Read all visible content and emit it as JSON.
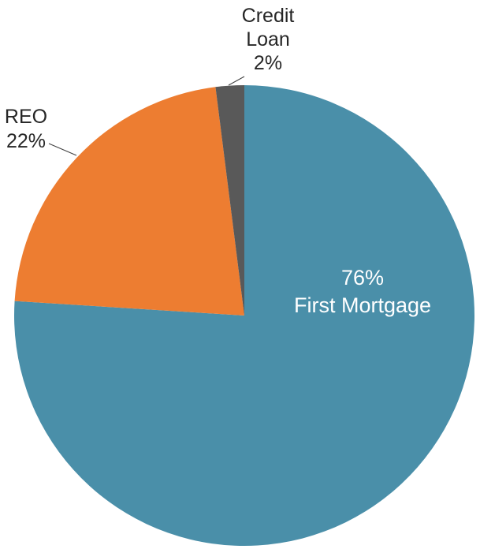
{
  "chart_data": {
    "type": "pie",
    "categories": [
      "First Mortgage",
      "REO",
      "Credit Loan"
    ],
    "values": [
      76,
      22,
      2
    ],
    "value_labels": [
      "76%",
      "22%",
      "2%"
    ],
    "colors": [
      "#4a8fa9",
      "#ed7d31",
      "#595959"
    ],
    "start_angle": 0,
    "direction": "clockwise"
  }
}
